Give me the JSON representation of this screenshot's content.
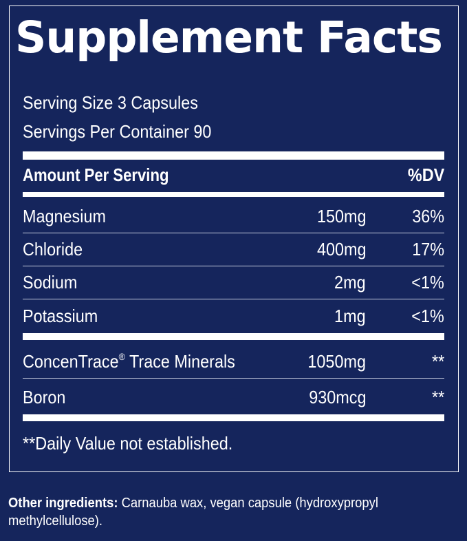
{
  "panel": {
    "title": "Supplement Facts",
    "serving_size": "Serving Size 3 Capsules",
    "servings_per_container": "Servings Per Container 90",
    "header": {
      "amount_label": "Amount Per Serving",
      "dv_label": "%DV"
    },
    "nutrients": [
      {
        "name": "Magnesium",
        "amount": "150mg",
        "dv": "36%"
      },
      {
        "name": "Chloride",
        "amount": "400mg",
        "dv": "17%"
      },
      {
        "name": "Sodium",
        "amount": "2mg",
        "dv": "<1%"
      },
      {
        "name": "Potassium",
        "amount": "1mg",
        "dv": "<1%"
      }
    ],
    "other_nutrients": [
      {
        "name": "ConcenTrace",
        "mark": "®",
        "name_suffix": " Trace Minerals",
        "amount": "1050mg",
        "dv": "**"
      },
      {
        "name": "Boron",
        "amount": "930mcg",
        "dv": "**"
      }
    ],
    "footnote": "**Daily Value not established."
  },
  "other_ingredients": {
    "label": "Other ingredients:",
    "text": " Carnauba wax, vegan capsule (hydroxypropyl methylcellulose)."
  },
  "colors": {
    "background": "#15255c",
    "text": "#ffffff"
  }
}
